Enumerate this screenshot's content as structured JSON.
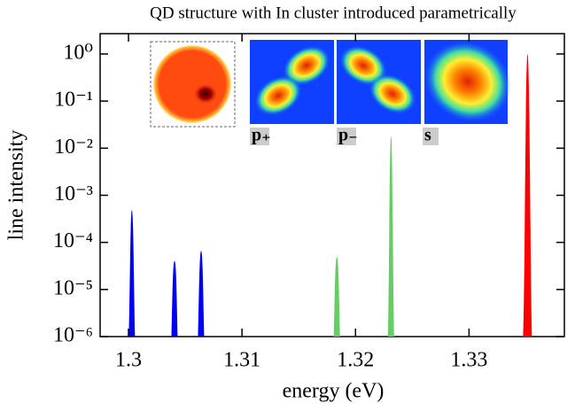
{
  "chart_data": {
    "type": "peaks",
    "title": "QD structure with In cluster introduced parametrically",
    "x_label": "energy (eV)",
    "y_label": "line intensity",
    "log_y": true,
    "xlim": [
      1.2975,
      1.3384
    ],
    "xticks": [
      1.3,
      1.31,
      1.32,
      1.33
    ],
    "ylim": [
      1e-06,
      2.7
    ],
    "yticks": [
      {
        "value": 1e-06,
        "label": "10⁻⁶"
      },
      {
        "value": 1e-05,
        "label": "10⁻⁵"
      },
      {
        "value": 0.0001,
        "label": "10⁻⁴"
      },
      {
        "value": 0.001,
        "label": "10⁻³"
      },
      {
        "value": 0.01,
        "label": "10⁻²"
      },
      {
        "value": 0.1,
        "label": "10⁻¹"
      },
      {
        "value": 1,
        "label": "10⁰"
      }
    ],
    "series": [
      {
        "color": "#0000ee",
        "x": [
          1.3003,
          1.30406,
          1.3064
        ],
        "values": [
          0.00049,
          4e-05,
          6.6e-05
        ]
      },
      {
        "color": "#66cc66",
        "x": [
          1.31836,
          1.32313
        ],
        "values": [
          4.9e-05,
          0.018
        ]
      },
      {
        "color": "#ff0000",
        "x": [
          1.33516
        ],
        "values": [
          1.0
        ]
      }
    ],
    "inset_labels": [
      "p₊",
      "p₋",
      "s"
    ]
  }
}
